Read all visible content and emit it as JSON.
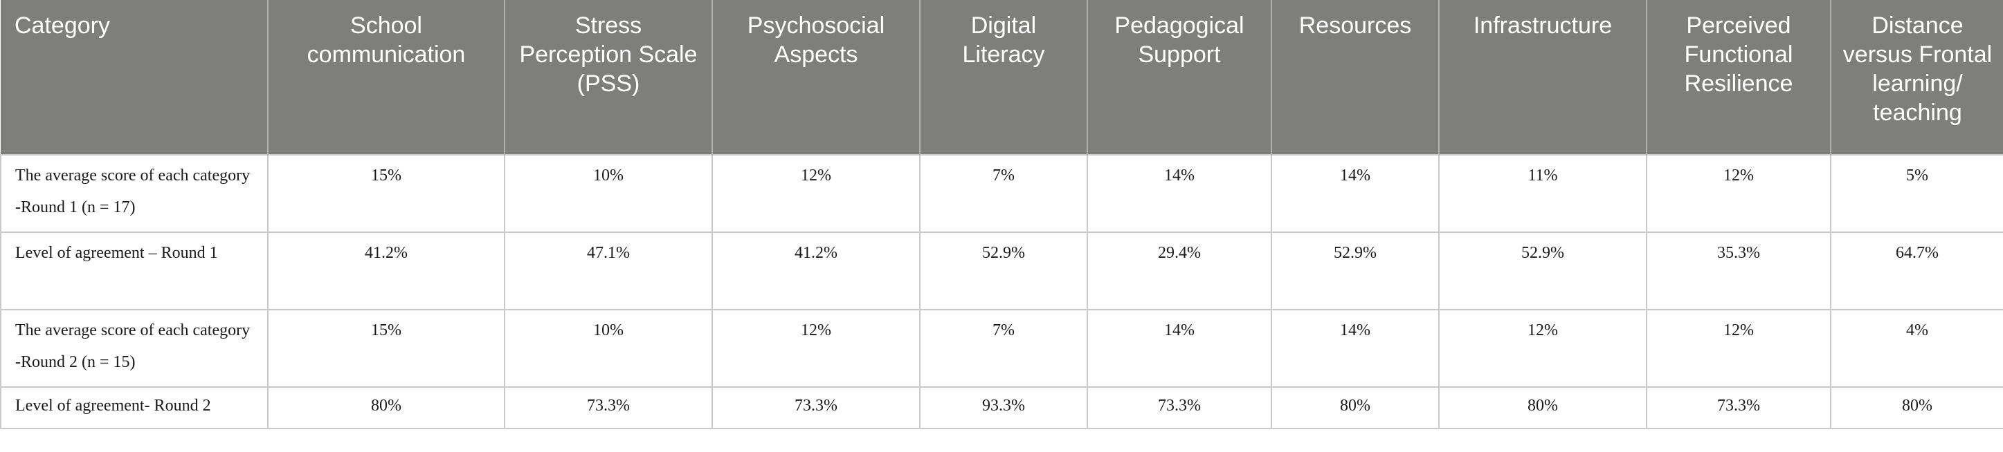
{
  "table": {
    "headers": [
      "Category",
      "School communication",
      "Stress Perception Scale (PSS)",
      "Psychosocial Aspects",
      "Digital Literacy",
      "Pedagogical Support",
      "Resources",
      "Infrastructure",
      "Perceived Functional Resilience",
      "Distance versus Frontal learning/ teaching"
    ],
    "rows": [
      {
        "label": "The average score of each category -Round 1 (n = 17)",
        "values": [
          "15%",
          "10%",
          "12%",
          "7%",
          "14%",
          "14%",
          "11%",
          "12%",
          "5%"
        ]
      },
      {
        "label": "Level of agreement – Round 1",
        "values": [
          "41.2%",
          "47.1%",
          "41.2%",
          "52.9%",
          "29.4%",
          "52.9%",
          "52.9%",
          "35.3%",
          "64.7%"
        ]
      },
      {
        "label": "The average score of each category -Round 2 (n = 15)",
        "values": [
          "15%",
          "10%",
          "12%",
          "7%",
          "14%",
          "14%",
          "12%",
          "12%",
          "4%"
        ]
      },
      {
        "label": "Level of agreement- Round 2",
        "values": [
          "80%",
          "73.3%",
          "73.3%",
          "93.3%",
          "73.3%",
          "80%",
          "80%",
          "73.3%",
          "80%"
        ]
      }
    ]
  },
  "colors": {
    "header_bg": "#7e7f7d",
    "header_text": "#ffffff",
    "border": "#c9c9c9"
  }
}
